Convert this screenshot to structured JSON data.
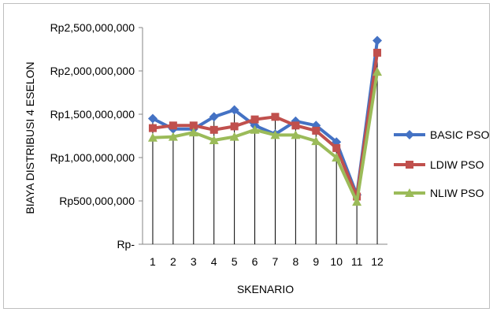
{
  "chart_data": {
    "type": "line",
    "title": "",
    "xlabel": "SKENARIO",
    "ylabel": "BIAYA DISTRIBUSI 4 ESELON",
    "categories": [
      "1",
      "2",
      "3",
      "4",
      "5",
      "6",
      "7",
      "8",
      "9",
      "10",
      "11",
      "12"
    ],
    "y_ticks": [
      0,
      500000000,
      1000000000,
      1500000000,
      2000000000,
      2500000000
    ],
    "y_tick_labels": [
      "Rp-",
      "Rp500,000,000",
      "Rp1,000,000,000",
      "Rp1,500,000,000",
      "Rp2,000,000,000",
      "Rp2,500,000,000"
    ],
    "ylim": [
      0,
      2500000000
    ],
    "grid": "vertical drop lines at each category",
    "legend_position": "right",
    "series": [
      {
        "name": "BASIC PSO",
        "color": "#4472c4",
        "marker": "diamond",
        "values": [
          1450000000,
          1330000000,
          1330000000,
          1470000000,
          1550000000,
          1370000000,
          1270000000,
          1420000000,
          1370000000,
          1180000000,
          570000000,
          2350000000
        ]
      },
      {
        "name": "LDIW PSO",
        "color": "#c0504d",
        "marker": "square",
        "values": [
          1340000000,
          1370000000,
          1370000000,
          1320000000,
          1360000000,
          1440000000,
          1470000000,
          1370000000,
          1310000000,
          1110000000,
          550000000,
          2210000000
        ]
      },
      {
        "name": "NLIW PSO",
        "color": "#9bbb59",
        "marker": "triangle",
        "values": [
          1230000000,
          1240000000,
          1290000000,
          1200000000,
          1240000000,
          1320000000,
          1260000000,
          1260000000,
          1190000000,
          1000000000,
          490000000,
          1990000000
        ]
      }
    ]
  }
}
